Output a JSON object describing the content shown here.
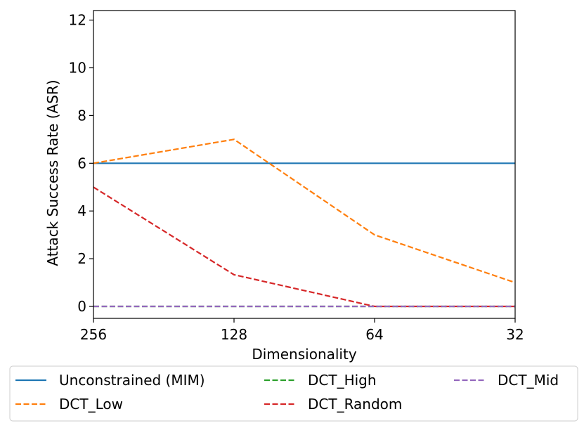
{
  "chart_data": {
    "type": "line",
    "xlabel": "Dimensionality",
    "ylabel": "Attack Success Rate (ASR)",
    "x_categories": [
      "256",
      "128",
      "64",
      "32"
    ],
    "ylim": [
      -0.5,
      12.4
    ],
    "y_ticks": [
      0,
      2,
      4,
      6,
      8,
      10,
      12
    ],
    "grid": false,
    "legend_position": "below",
    "series": [
      {
        "name": "Unconstrained (MIM)",
        "values": [
          6,
          6,
          6,
          6
        ],
        "color": "#1f77b4",
        "style": "solid"
      },
      {
        "name": "DCT_Low",
        "values": [
          6,
          7,
          3,
          1
        ],
        "color": "#ff7f0e",
        "style": "dashed"
      },
      {
        "name": "DCT_High",
        "values": [
          0,
          0,
          0,
          0
        ],
        "color": "#2ca02c",
        "style": "dashed"
      },
      {
        "name": "DCT_Random",
        "values": [
          5,
          1.33,
          0,
          0
        ],
        "color": "#d62728",
        "style": "dashed"
      },
      {
        "name": "DCT_Mid",
        "values": [
          0,
          0,
          0,
          0
        ],
        "color": "#9467bd",
        "style": "dashed"
      }
    ]
  }
}
